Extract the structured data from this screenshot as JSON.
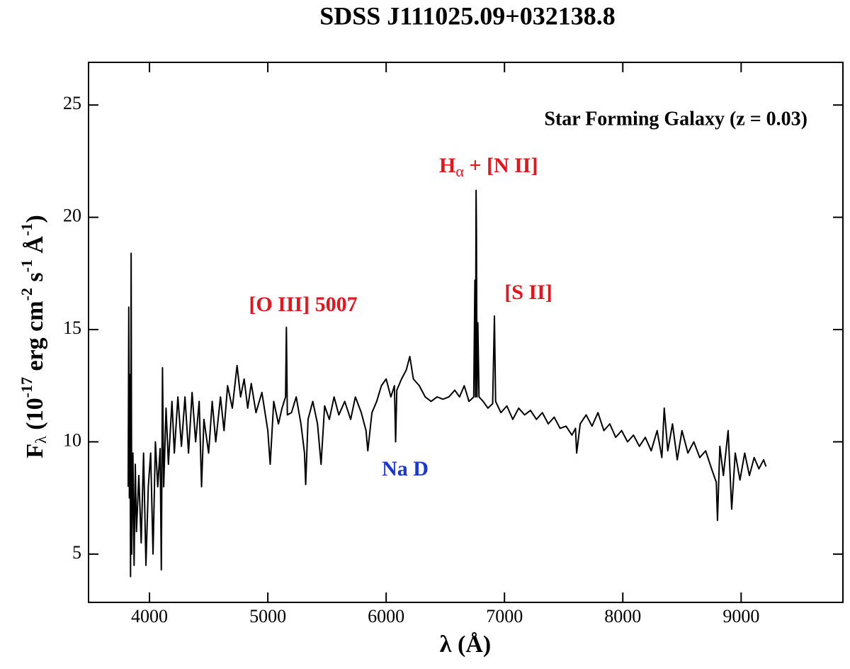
{
  "chart_data": {
    "type": "line",
    "title": "SDSS J111025.09+032138.8",
    "annotations": [
      "Star Forming Galaxy (z = 0.03)",
      "[O III] 5007",
      "H",
      "α",
      " + [N II]",
      "[S II]",
      "Na D"
    ],
    "x_label": [
      "λ (Å)"
    ],
    "y_label": [
      "F",
      "λ",
      " (10",
      "-17",
      " erg cm",
      "-2",
      " s",
      "-1",
      " Å",
      "-1",
      ")"
    ],
    "xlim": [
      3485,
      9860
    ],
    "ylim": [
      2.85,
      26.9
    ],
    "xticks": [
      4000,
      5000,
      6000,
      7000,
      8000,
      9000
    ],
    "yticks": [
      5,
      10,
      15,
      20,
      25
    ],
    "series": [
      {
        "name": "spectrum",
        "color": "#000000",
        "x": [
          3820,
          3825,
          3830,
          3835,
          3840,
          3845,
          3850,
          3860,
          3870,
          3880,
          3890,
          3910,
          3930,
          3950,
          3970,
          3990,
          4010,
          4030,
          4050,
          4070,
          4090,
          4100,
          4110,
          4120,
          4140,
          4160,
          4190,
          4210,
          4240,
          4270,
          4300,
          4330,
          4360,
          4390,
          4420,
          4440,
          4460,
          4500,
          4530,
          4560,
          4600,
          4630,
          4660,
          4700,
          4740,
          4770,
          4800,
          4830,
          4860,
          4900,
          4950,
          5000,
          5020,
          5050,
          5090,
          5120,
          5150,
          5157,
          5165,
          5200,
          5240,
          5280,
          5310,
          5320,
          5340,
          5380,
          5420,
          5450,
          5480,
          5520,
          5560,
          5600,
          5650,
          5700,
          5740,
          5790,
          5830,
          5845,
          5880,
          5920,
          5960,
          6000,
          6040,
          6070,
          6080,
          6090,
          6130,
          6170,
          6200,
          6230,
          6280,
          6330,
          6380,
          6430,
          6480,
          6530,
          6580,
          6620,
          6660,
          6700,
          6740,
          6750,
          6755,
          6760,
          6763,
          6768,
          6775,
          6785,
          6820,
          6860,
          6900,
          6915,
          6925,
          6970,
          7020,
          7070,
          7120,
          7170,
          7220,
          7270,
          7320,
          7370,
          7420,
          7470,
          7520,
          7570,
          7600,
          7610,
          7640,
          7690,
          7740,
          7790,
          7840,
          7890,
          7940,
          7990,
          8040,
          8090,
          8140,
          8190,
          8240,
          8290,
          8330,
          8350,
          8380,
          8420,
          8460,
          8500,
          8550,
          8600,
          8650,
          8700,
          8750,
          8790,
          8800,
          8820,
          8850,
          8890,
          8920,
          8950,
          8990,
          9030,
          9070,
          9110,
          9150,
          9190,
          9210
        ],
        "values": [
          8,
          16,
          7.5,
          13,
          4,
          18.4,
          5,
          9.5,
          4.5,
          9,
          6,
          8.5,
          5.5,
          9.5,
          4.5,
          8,
          9.5,
          5,
          10,
          8,
          9.7,
          4.3,
          13.3,
          8,
          11.5,
          9,
          11.8,
          9.5,
          12,
          9.8,
          12,
          9.5,
          12.2,
          10,
          11.8,
          8,
          11,
          9.5,
          11.8,
          10,
          12,
          10.5,
          12.5,
          11.5,
          13.4,
          12,
          12.8,
          11.5,
          12.6,
          11.3,
          12.2,
          10.5,
          9,
          11.8,
          10.8,
          11.5,
          12,
          15.1,
          11.2,
          11.3,
          12,
          10.8,
          9.5,
          8.1,
          11,
          11.8,
          10.8,
          9,
          11.6,
          11,
          12,
          11.2,
          11.8,
          11,
          12,
          11.3,
          10.5,
          9.6,
          11.3,
          11.8,
          12.5,
          12.8,
          12,
          12.5,
          10,
          12.3,
          12.8,
          13.2,
          13.8,
          12.8,
          12.5,
          12,
          11.8,
          12,
          11.9,
          12,
          12.3,
          12,
          12.5,
          11.8,
          12,
          17.2,
          12,
          21.2,
          19.4,
          12,
          15.3,
          12,
          11.8,
          11.5,
          11.7,
          15.6,
          11.8,
          11.3,
          11.6,
          11,
          11.5,
          11.2,
          11.4,
          11,
          11.3,
          10.8,
          11.1,
          10.6,
          10.7,
          10.3,
          10.6,
          9.5,
          10.8,
          11.2,
          10.7,
          11.3,
          10.5,
          10.8,
          10.2,
          10.5,
          10,
          10.3,
          9.8,
          10.2,
          9.6,
          10.5,
          9.3,
          11.5,
          9.6,
          10.8,
          9.2,
          10.5,
          9.5,
          10,
          9.3,
          9.6,
          8.8,
          8.2,
          6.5,
          9.8,
          8.5,
          10.5,
          7,
          9.5,
          8.3,
          9.5,
          8.5,
          9.3,
          8.8,
          9.2,
          8.9
        ]
      }
    ]
  }
}
